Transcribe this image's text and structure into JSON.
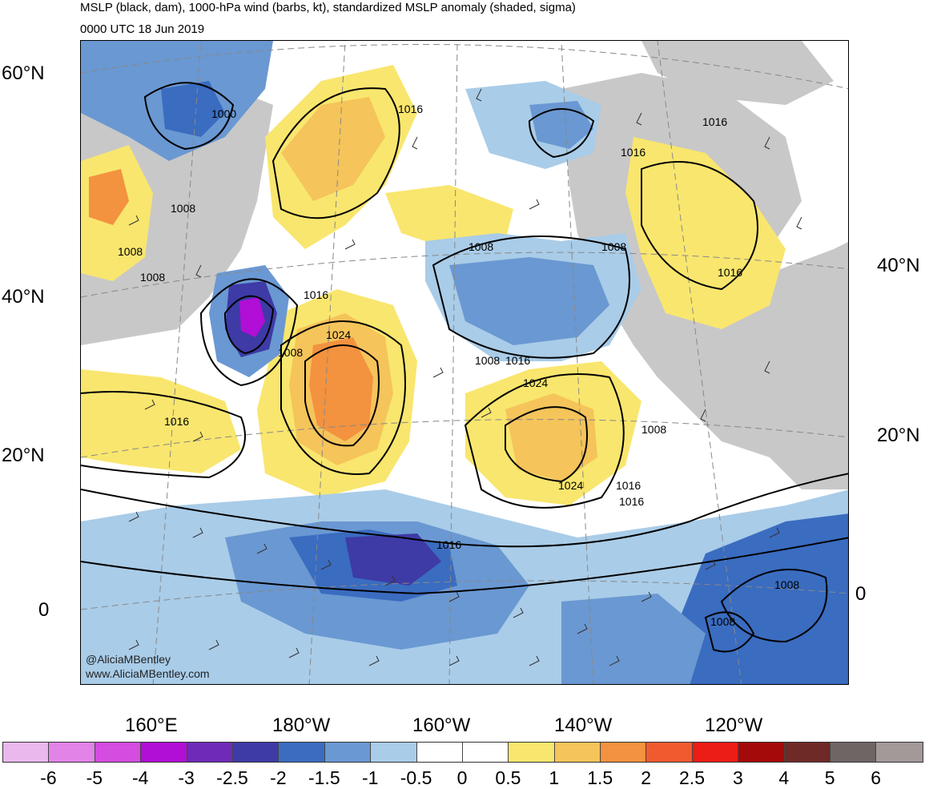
{
  "title": {
    "line1": "MSLP (black, dam), 1000-hPa wind (barbs, kt), standardized MSLP anomaly (shaded, sigma)",
    "line2": "0000 UTC 18 Jun 2019"
  },
  "credits": {
    "handle": "@AliciaMBentley",
    "url": "www.AliciaMBentley.com"
  },
  "lat_labels_left": [
    "60°N",
    "40°N",
    "20°N",
    "0"
  ],
  "lat_labels_right": [
    "40°N",
    "20°N",
    "0"
  ],
  "lon_labels": [
    "160°E",
    "180°W",
    "160°W",
    "140°W",
    "120°W"
  ],
  "isobar_labels": [
    "1000",
    "1016",
    "1016",
    "1016",
    "1008",
    "1008",
    "1008",
    "1016",
    "1008",
    "1008",
    "1016",
    "1024",
    "1008",
    "1008",
    "1016",
    "1024",
    "1008",
    "1016",
    "1024",
    "1016",
    "1008",
    "1008",
    "1016",
    "1016"
  ],
  "colorbar": {
    "colors": [
      "#eab8ec",
      "#e283e8",
      "#d44ce0",
      "#b10ed6",
      "#6f2ab8",
      "#3e3aa6",
      "#3a6cc0",
      "#6a98d2",
      "#a9cce8",
      "#ffffff",
      "#ffffff",
      "#f9e66e",
      "#f5c45a",
      "#f3923f",
      "#f15a2e",
      "#ec1c16",
      "#a50a0a",
      "#6e2a26",
      "#6f6565",
      "#a39999"
    ],
    "labels": [
      "-6",
      "-5",
      "-4",
      "-3",
      "-2.5",
      "-2",
      "-1.5",
      "-1",
      "-0.5",
      "0",
      "0.5",
      "1",
      "1.5",
      "2",
      "2.5",
      "3",
      "4",
      "5",
      "6"
    ]
  },
  "land_color": "#c8c8c8"
}
